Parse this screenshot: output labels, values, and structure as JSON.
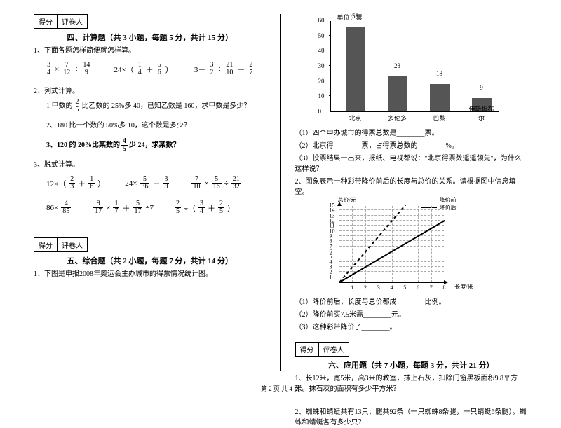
{
  "scorebox": {
    "score": "得分",
    "grader": "评卷人"
  },
  "sec4": {
    "title": "四、计算题（共 3 小题，每题 5 分，共计 15 分）",
    "q1": "1、下面各题怎样简便就怎样算。",
    "q1_exprs": [
      "3/4 × 7/12 ÷ 14/9",
      "24×（1/4 ＋ 5/6）",
      "3－ 3/2 ÷ 21/10 － 2/7"
    ],
    "q2": "2、列式计算。",
    "q2_1": "1  甲数的 2/5 比乙数的 25%多 40，已知乙数是 160，求甲数是多少？",
    "q2_2": "2、180 比一个数的 50%多 10，这个数是多少？",
    "q2_3": "3、120 的 20%比某数的 4/5 少 24，求某数？",
    "q3": "3、脱式计算。",
    "q3_row1": [
      "12×（2/3＋1/6）",
      "24× 5/36 － 3/8",
      "7/10 × 5/16 ÷ 21/32"
    ],
    "q3_row2": [
      "86× 4/85",
      "9/17 × 1/7 ＋ 5/17 ÷7",
      "2/5 ÷（3/4＋2/5）"
    ]
  },
  "sec5": {
    "title": "五、综合题（共 2 小题，每题 7 分，共计 14 分）",
    "q1": "1、下图是申报2008年奥运会主办城市的得票情况统计图。",
    "chart": {
      "type": "bar",
      "unit": "单位：票",
      "ylim": [
        0,
        60
      ],
      "ystep": 10,
      "categories": [
        "北京",
        "多伦多",
        "巴黎",
        "伊斯坦布尔"
      ],
      "values": [
        56,
        23,
        18,
        9
      ],
      "bar_color": "#555555",
      "axis_color": "#000000",
      "label_fontsize": 9
    },
    "q1_sub1": "（1）四个申办城市的得票总数是________票。",
    "q1_sub2": "（2）北京得________票，占得票总数的________%。",
    "q1_sub3": "（3）投票结果一出来，报纸、电视都说：\"北京得票数遥遥领先\"，为什么这样说？",
    "q2": "2、图象表示一种彩带降价前后的长度与总价的关系。请根据图中信息填空。",
    "lchart": {
      "type": "line",
      "xlabel": "长度/米",
      "ylabel": "总价/元",
      "xticks": [
        1,
        2,
        3,
        4,
        5,
        6,
        7,
        8
      ],
      "yticks": [
        1,
        2,
        3,
        4,
        5,
        6,
        7,
        8,
        9,
        10,
        11,
        12,
        13,
        14,
        15
      ],
      "legend": [
        "降价前",
        "降价后"
      ],
      "line_before": {
        "x": [
          0,
          5
        ],
        "y": [
          0,
          15
        ],
        "style": "dashed"
      },
      "line_after": {
        "x": [
          0,
          8
        ],
        "y": [
          0,
          12
        ],
        "style": "solid"
      },
      "grid_color": "#aaaaaa"
    },
    "q2_sub1": "（1）降价前后，长度与总价都成________比例。",
    "q2_sub2": "（2）降价前买7.5米需________元。",
    "q2_sub3": "（3）这种彩带降价了________。"
  },
  "sec6": {
    "title": "六、应用题（共 7 小题，每题 3 分，共计 21 分）",
    "q1": "1、长12米，宽5米，高3米的教室，抹上石灰，扣除门窗黑板面积9.8平方米。抹石灰的面积有多少平方米？",
    "q2": "2、蜘蛛和蜻蜓共有13只，腿共92条（一只蜘蛛8条腿，一只蜻蜓6条腿）。蜘蛛和蜻蜓各有多少只？"
  },
  "footer": "第 2 页 共 4 页"
}
